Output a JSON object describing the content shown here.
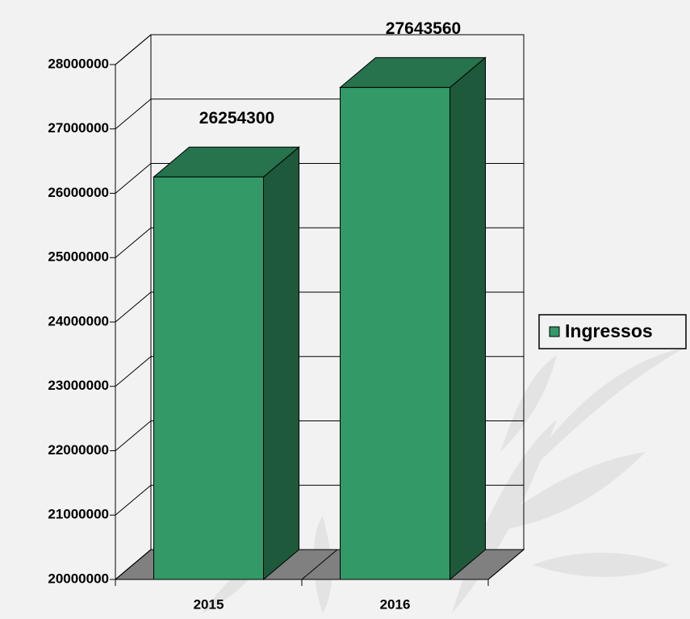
{
  "chart_data": {
    "type": "bar",
    "categories": [
      "2015",
      "2016"
    ],
    "series": [
      {
        "name": "Ingressos",
        "color": "#339966",
        "values": [
          26254300,
          27643560
        ]
      }
    ],
    "ylim": [
      20000000,
      28000000
    ],
    "yticks": [
      20000000,
      21000000,
      22000000,
      23000000,
      24000000,
      25000000,
      26000000,
      27000000,
      28000000
    ],
    "grid": true,
    "legend": "right"
  }
}
